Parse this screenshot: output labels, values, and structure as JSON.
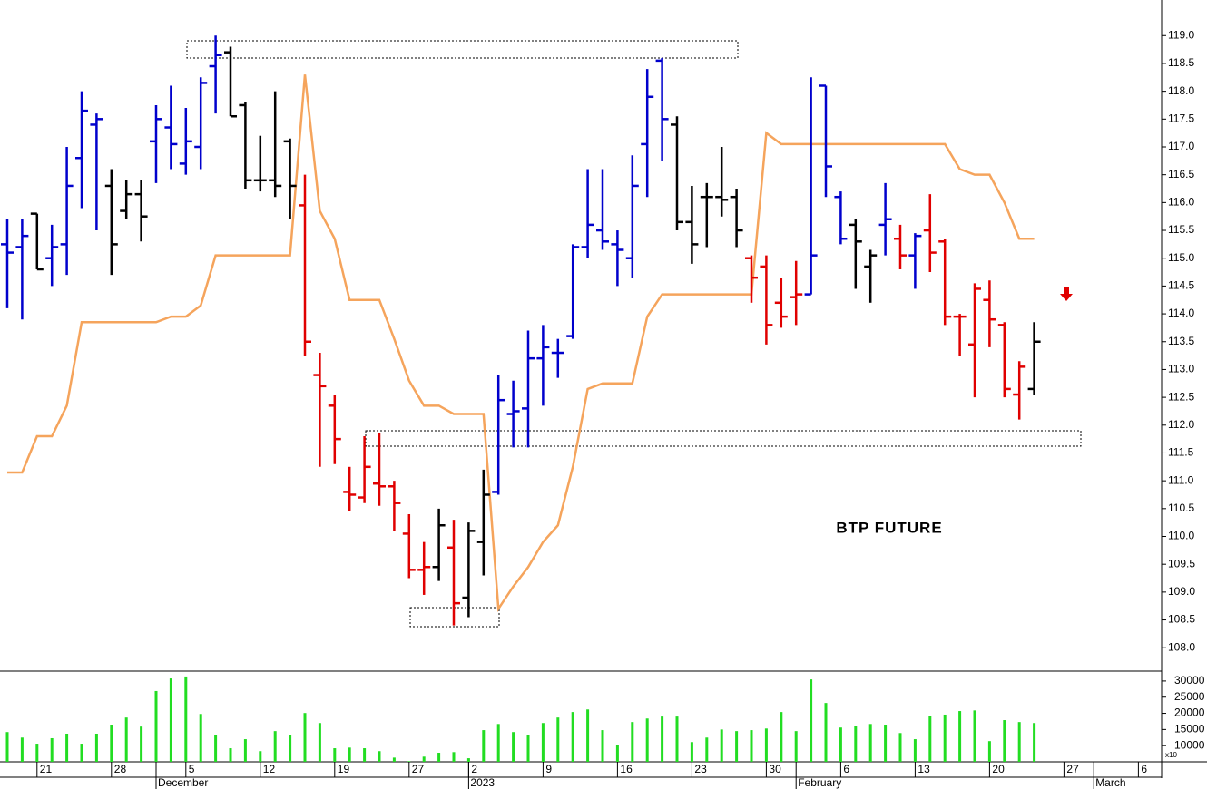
{
  "chart_data": {
    "type": "ohlc",
    "title": "BTP FUTURE",
    "categories": [
      null,
      null,
      "21",
      null,
      null,
      null,
      null,
      "28",
      null,
      null,
      null,
      null,
      "5",
      null,
      null,
      null,
      null,
      "12",
      null,
      null,
      null,
      null,
      "19",
      null,
      null,
      null,
      null,
      "27",
      null,
      null,
      null,
      "2",
      null,
      null,
      null,
      null,
      "9",
      null,
      null,
      null,
      null,
      "16",
      null,
      null,
      null,
      null,
      "23",
      null,
      null,
      null,
      null,
      "30",
      null,
      null,
      null,
      null,
      "6",
      null,
      null,
      null,
      null,
      "13",
      null,
      null,
      null,
      null,
      "20",
      null,
      null,
      null,
      null,
      "27",
      null,
      null,
      null,
      null,
      "6",
      null
    ],
    "month_labels": [
      null,
      null,
      null,
      null,
      null,
      null,
      null,
      null,
      null,
      null,
      "December",
      null,
      null,
      null,
      null,
      null,
      null,
      null,
      null,
      null,
      null,
      null,
      null,
      null,
      null,
      null,
      null,
      null,
      null,
      null,
      null,
      "2023",
      null,
      null,
      null,
      null,
      null,
      null,
      null,
      null,
      null,
      null,
      null,
      null,
      null,
      null,
      null,
      null,
      null,
      null,
      null,
      null,
      null,
      "February",
      null,
      null,
      null,
      null,
      null,
      null,
      null,
      null,
      null,
      null,
      null,
      null,
      null,
      null,
      null,
      null,
      null,
      null,
      null,
      "March",
      null,
      null,
      null,
      null
    ],
    "open": [
      115.25,
      115.2,
      115.8,
      115.0,
      115.25,
      116.8,
      117.4,
      116.3,
      115.85,
      116.15,
      117.1,
      117.35,
      116.7,
      117.0,
      118.45,
      118.7,
      117.75,
      116.4,
      116.4,
      117.1,
      115.95,
      112.9,
      112.35,
      110.8,
      110.7,
      110.95,
      110.9,
      110.05,
      109.4,
      109.45,
      109.8,
      108.9,
      109.9,
      110.8,
      112.2,
      112.3,
      113.2,
      113.3,
      113.6,
      115.2,
      115.5,
      115.25,
      115.0,
      117.05,
      118.55,
      117.4,
      115.65,
      116.1,
      116.1,
      116.1,
      115.0,
      114.85,
      114.2,
      114.3,
      114.35,
      118.1,
      116.1,
      115.6,
      114.85,
      115.6,
      115.35,
      115.05,
      115.5,
      115.3,
      113.95,
      113.45,
      114.25,
      113.8,
      112.55,
      112.65,
      null,
      null,
      null,
      null,
      null,
      null,
      null,
      null
    ],
    "high": [
      115.7,
      115.7,
      115.8,
      115.6,
      117.0,
      118.0,
      117.6,
      116.6,
      116.4,
      116.4,
      117.75,
      118.1,
      117.7,
      118.25,
      119.0,
      118.8,
      117.8,
      117.2,
      118.0,
      117.15,
      116.5,
      113.3,
      112.55,
      111.25,
      111.8,
      111.85,
      111.0,
      110.4,
      109.9,
      110.5,
      110.3,
      110.25,
      111.2,
      112.9,
      112.8,
      113.7,
      113.8,
      113.55,
      115.25,
      116.6,
      116.6,
      115.5,
      116.85,
      118.4,
      118.6,
      117.55,
      116.3,
      116.35,
      117.0,
      116.25,
      115.05,
      115.05,
      114.65,
      114.95,
      118.25,
      118.1,
      116.2,
      115.7,
      115.15,
      116.35,
      115.6,
      115.45,
      116.15,
      115.35,
      114.0,
      114.55,
      114.6,
      113.85,
      113.15,
      113.85,
      null,
      null,
      null,
      null,
      null,
      null,
      null,
      null
    ],
    "low": [
      114.1,
      113.9,
      114.8,
      114.5,
      114.7,
      115.9,
      115.5,
      114.7,
      115.7,
      115.3,
      116.35,
      116.6,
      116.5,
      116.6,
      117.6,
      117.55,
      116.25,
      116.2,
      116.1,
      115.7,
      113.25,
      111.25,
      111.3,
      110.45,
      110.6,
      110.55,
      110.1,
      109.25,
      108.95,
      109.2,
      108.4,
      108.55,
      109.3,
      110.75,
      111.6,
      111.6,
      112.35,
      112.85,
      113.55,
      115.0,
      115.15,
      114.5,
      114.65,
      116.1,
      116.75,
      115.5,
      114.9,
      115.2,
      115.75,
      115.2,
      114.2,
      113.45,
      113.75,
      113.8,
      114.35,
      116.1,
      115.25,
      114.45,
      114.2,
      115.05,
      114.8,
      114.45,
      114.75,
      113.8,
      113.25,
      112.5,
      113.4,
      112.5,
      112.1,
      112.55,
      null,
      null,
      null,
      null,
      null,
      null,
      null,
      null
    ],
    "close": [
      115.1,
      115.4,
      114.8,
      115.2,
      116.3,
      117.65,
      117.5,
      115.25,
      116.15,
      115.75,
      117.5,
      117.05,
      117.1,
      118.15,
      118.65,
      117.55,
      116.4,
      116.4,
      116.3,
      116.3,
      113.5,
      112.7,
      111.75,
      110.75,
      111.25,
      110.9,
      110.6,
      109.4,
      109.45,
      110.2,
      108.8,
      110.1,
      110.75,
      112.45,
      112.25,
      113.2,
      113.4,
      113.3,
      115.2,
      115.6,
      115.3,
      115.15,
      116.3,
      117.9,
      117.5,
      115.65,
      115.25,
      116.1,
      116.05,
      115.5,
      114.65,
      113.8,
      113.95,
      114.35,
      115.05,
      116.65,
      115.35,
      115.3,
      115.05,
      115.7,
      115.05,
      115.4,
      115.1,
      113.95,
      113.95,
      114.45,
      113.9,
      112.65,
      113.05,
      113.5,
      null,
      null,
      null,
      null,
      null,
      null,
      null,
      null
    ],
    "bar_colors": [
      "#0000cc",
      "#0000cc",
      "#000000",
      "#0000cc",
      "#0000cc",
      "#0000cc",
      "#0000cc",
      "#000000",
      "#000000",
      "#000000",
      "#0000cc",
      "#0000cc",
      "#0000cc",
      "#0000cc",
      "#0000cc",
      "#000000",
      "#000000",
      "#000000",
      "#000000",
      "#000000",
      "#e00000",
      "#e00000",
      "#e00000",
      "#e00000",
      "#e00000",
      "#e00000",
      "#e00000",
      "#e00000",
      "#e00000",
      "#000000",
      "#e00000",
      "#000000",
      "#000000",
      "#0000cc",
      "#0000cc",
      "#0000cc",
      "#0000cc",
      "#0000cc",
      "#0000cc",
      "#0000cc",
      "#0000cc",
      "#0000cc",
      "#0000cc",
      "#0000cc",
      "#0000cc",
      "#000000",
      "#000000",
      "#000000",
      "#000000",
      "#000000",
      "#e00000",
      "#e00000",
      "#e00000",
      "#e00000",
      "#0000cc",
      "#0000cc",
      "#0000cc",
      "#000000",
      "#000000",
      "#0000cc",
      "#e00000",
      "#0000cc",
      "#e00000",
      "#e00000",
      "#e00000",
      "#e00000",
      "#e00000",
      "#e00000",
      "#e00000",
      "#000000",
      null,
      null,
      null,
      null,
      null,
      null,
      null,
      null
    ],
    "overlay": {
      "color": "#f5a45c",
      "values": [
        111.15,
        111.15,
        111.8,
        111.8,
        112.35,
        113.85,
        113.85,
        113.85,
        113.85,
        113.85,
        113.85,
        113.95,
        113.95,
        114.15,
        115.05,
        115.05,
        115.05,
        115.05,
        115.05,
        115.05,
        118.3,
        115.85,
        115.35,
        114.25,
        114.25,
        114.25,
        113.55,
        112.8,
        112.35,
        112.35,
        112.2,
        112.2,
        112.2,
        108.7,
        109.1,
        109.45,
        109.9,
        110.2,
        111.25,
        112.65,
        112.75,
        112.75,
        112.75,
        113.95,
        114.35,
        114.35,
        114.35,
        114.35,
        114.35,
        114.35,
        114.35,
        117.25,
        117.05,
        117.05,
        117.05,
        117.05,
        117.05,
        117.05,
        117.05,
        117.05,
        117.05,
        117.05,
        117.05,
        117.05,
        116.6,
        116.5,
        116.5,
        116.0,
        115.35,
        115.35,
        null,
        null,
        null,
        null,
        null,
        null,
        null,
        null
      ]
    },
    "ylim": [
      107.58,
      119.64
    ],
    "yticks": [
      {
        "value": 108,
        "label": "108.0"
      },
      108.5,
      {
        "value": 109,
        "label": "109.0"
      },
      109.5,
      {
        "value": 110,
        "label": "110.0"
      },
      110.5,
      {
        "value": 111,
        "label": "111.0"
      },
      111.5,
      {
        "value": 112,
        "label": "112.0"
      },
      112.5,
      {
        "value": 113,
        "label": "113.0"
      },
      113.5,
      {
        "value": 114,
        "label": "114.0"
      },
      114.5,
      {
        "value": 115,
        "label": "115.0"
      },
      115.5,
      {
        "value": 116,
        "label": "116.0"
      },
      116.5,
      {
        "value": 117,
        "label": "117.0"
      },
      117.5,
      {
        "value": 118,
        "label": "118.0"
      },
      118.5,
      {
        "value": 119,
        "label": "119.0"
      }
    ],
    "volume": {
      "color": "#22dd22",
      "unit_label": "x10",
      "values": [
        14200,
        12500,
        10600,
        12300,
        13700,
        10600,
        13700,
        16500,
        18700,
        15900,
        26900,
        30800,
        31400,
        19800,
        13400,
        9200,
        12000,
        8300,
        14500,
        13400,
        20100,
        17000,
        9200,
        9400,
        9200,
        8300,
        6300,
        5200,
        6600,
        7800,
        8000,
        6100,
        14800,
        16700,
        14200,
        13400,
        17000,
        18700,
        20400,
        21200,
        14800,
        10300,
        17300,
        18400,
        19000,
        19000,
        11100,
        12500,
        15000,
        14500,
        14800,
        15300,
        20400,
        14500,
        30500,
        23200,
        15600,
        16200,
        16700,
        16500,
        13900,
        12000,
        19300,
        19600,
        20700,
        20900,
        11400,
        17900,
        17300,
        17000,
        null,
        null,
        null,
        null,
        null,
        null,
        null,
        null
      ],
      "ylim": [
        5000,
        32500
      ],
      "yticks": [
        10000,
        15000,
        20000,
        25000,
        30000
      ]
    }
  }
}
